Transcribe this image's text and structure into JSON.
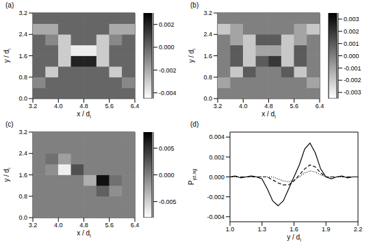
{
  "chart_data": [
    {
      "type": "heatmap",
      "title": "(a)",
      "xlabel": "x / di",
      "ylabel": "y / di",
      "xlim": [
        3.2,
        6.4
      ],
      "xticks": [
        3.2,
        {
          "value": 4,
          "label": "4.0"
        },
        4.8,
        5.6,
        6.4
      ],
      "ylim": [
        0,
        3.2
      ],
      "yticks": [
        {
          "value": 0,
          "label": "0.0"
        },
        0.8,
        1.6,
        2.4,
        3.2
      ],
      "cell_x": [
        3.4,
        3.8,
        4.2,
        4.6,
        5.0,
        5.4,
        5.8,
        6.2
      ],
      "cell_y": [
        0.2,
        0.6,
        1.0,
        1.4,
        1.8,
        2.2,
        2.6,
        3.0
      ],
      "cells": [
        [
          0,
          0,
          0,
          0,
          0,
          0,
          0,
          0
        ],
        [
          -0.001,
          0,
          0,
          0,
          0,
          0,
          0,
          -0.001
        ],
        [
          0,
          -0.003,
          0,
          0,
          0,
          0,
          -0.003,
          0
        ],
        [
          0,
          0,
          -0.003,
          0.002,
          0.002,
          -0.003,
          0,
          0
        ],
        [
          0,
          0,
          -0.003,
          -0.004,
          -0.004,
          -0.003,
          0,
          0
        ],
        [
          0,
          -0.001,
          -0.003,
          0,
          0,
          -0.003,
          -0.001,
          0
        ],
        [
          -0.002,
          -0.002,
          0,
          0,
          0,
          0,
          -0.002,
          -0.002
        ],
        [
          0,
          0,
          0,
          0,
          0,
          0,
          0,
          0
        ]
      ],
      "colorbar_range": [
        -0.0045,
        0.003
      ],
      "colorbar_ticks": [
        0.002,
        {
          "value": 0,
          "label": "0.000"
        },
        -0.002,
        -0.004
      ]
    },
    {
      "type": "heatmap",
      "title": "(b)",
      "xlabel": "x / di",
      "ylabel": "y / di",
      "xlim": [
        3.2,
        6.4
      ],
      "xticks": [
        3.2,
        {
          "value": 4,
          "label": "4.0"
        },
        4.8,
        5.6,
        6.4
      ],
      "ylim": [
        0,
        3.2
      ],
      "yticks": [
        {
          "value": 0,
          "label": "0.0"
        },
        0.8,
        1.6,
        2.4,
        3.2
      ],
      "cell_x": [
        3.4,
        3.8,
        4.2,
        4.6,
        5.0,
        5.4,
        5.8,
        6.2
      ],
      "cell_y": [
        0.2,
        0.6,
        1.0,
        1.4,
        1.8,
        2.2,
        2.6,
        3.0
      ],
      "cells": [
        [
          0,
          0,
          0,
          0,
          0,
          0,
          0,
          0
        ],
        [
          -0.001,
          0,
          0,
          0,
          0,
          0,
          0,
          -0.001
        ],
        [
          0,
          -0.002,
          0.001,
          0,
          0,
          0.001,
          -0.002,
          0
        ],
        [
          0,
          0.001,
          -0.002,
          0.001,
          0.002,
          -0.002,
          0.001,
          0
        ],
        [
          0,
          0.001,
          -0.002,
          -0.001,
          -0.001,
          -0.002,
          0.001,
          0
        ],
        [
          0,
          -0.001,
          -0.002,
          0.001,
          0.001,
          -0.002,
          -0.001,
          0
        ],
        [
          -0.002,
          -0.001,
          0,
          0,
          0,
          0,
          -0.001,
          -0.002
        ],
        [
          0,
          0,
          0,
          0,
          0,
          0,
          0,
          0
        ]
      ],
      "colorbar_range": [
        -0.0035,
        0.0035
      ],
      "colorbar_ticks": [
        0.003,
        0.002,
        0.001,
        {
          "value": 0,
          "label": "0.000"
        },
        -0.001,
        -0.002,
        -0.003
      ]
    },
    {
      "type": "heatmap",
      "title": "(c)",
      "xlabel": "x / di",
      "ylabel": "y / di",
      "xlim": [
        3.2,
        6.4
      ],
      "xticks": [
        3.2,
        {
          "value": 4,
          "label": "4.0"
        },
        4.8,
        5.6,
        6.4
      ],
      "ylim": [
        0,
        3.2
      ],
      "yticks": [
        {
          "value": 0,
          "label": "0.0"
        },
        0.8,
        1.6,
        2.4,
        3.2
      ],
      "cell_x": [
        3.4,
        3.8,
        4.2,
        4.6,
        5.0,
        5.4,
        5.8,
        6.2
      ],
      "cell_y": [
        0.2,
        0.6,
        1.0,
        1.4,
        1.8,
        2.2,
        2.6,
        3.0
      ],
      "cells": [
        [
          0,
          0,
          0,
          0,
          0,
          0,
          0,
          0
        ],
        [
          0,
          0,
          0,
          0,
          0,
          0,
          0,
          0
        ],
        [
          0,
          0,
          0,
          0,
          0,
          0.002,
          -0.001,
          0
        ],
        [
          0,
          0,
          0,
          0,
          -0.003,
          0.007,
          0.001,
          0
        ],
        [
          0,
          -0.001,
          -0.007,
          0.003,
          0,
          0,
          0,
          0
        ],
        [
          0,
          0.001,
          -0.002,
          0,
          0,
          0,
          0,
          0
        ],
        [
          0,
          0,
          0,
          0,
          0,
          0,
          0,
          0
        ],
        [
          0,
          0,
          0,
          0,
          0,
          0,
          0,
          0
        ]
      ],
      "colorbar_range": [
        -0.008,
        0.008
      ],
      "colorbar_ticks": [
        0.005,
        {
          "value": 0,
          "label": "0.000"
        },
        -0.005
      ]
    },
    {
      "type": "line",
      "title": "(d)",
      "xlabel": "y / di",
      "ylabel": "Pyz,ng",
      "xlim": [
        1.0,
        2.2
      ],
      "xticks": [
        {
          "value": 1,
          "label": "1.0"
        },
        1.3,
        1.6,
        1.9,
        2.2
      ],
      "ylim": [
        -0.0045,
        0.0045
      ],
      "yticks": [
        -0.004,
        -0.002,
        {
          "value": 0,
          "label": "0.000"
        },
        0.002,
        0.004
      ],
      "x": [
        1.0,
        1.05,
        1.1,
        1.15,
        1.2,
        1.25,
        1.3,
        1.35,
        1.4,
        1.45,
        1.5,
        1.55,
        1.6,
        1.65,
        1.7,
        1.75,
        1.8,
        1.85,
        1.9,
        1.95,
        2.0,
        2.05,
        2.1,
        2.15,
        2.2
      ],
      "series": [
        {
          "color": "#000000",
          "line_style": "solid",
          "values": [
            0,
            0.0001,
            -0.0001,
            0,
            0.0001,
            0,
            -0.0002,
            -0.0012,
            -0.0024,
            -0.0029,
            -0.0024,
            -0.0012,
            0,
            0.0012,
            0.0028,
            0.0034,
            0.0024,
            0.0008,
            0,
            -0.0002,
            0,
            0.0001,
            -0.0001,
            0,
            0
          ]
        },
        {
          "color": "#000000",
          "line_style": "dashed",
          "values": [
            0,
            0,
            0,
            0,
            0,
            0,
            0,
            0,
            -0.0003,
            -0.0006,
            -0.0008,
            -0.0008,
            -0.0004,
            0.0002,
            0.0008,
            0.0012,
            0.001,
            0.0004,
            0,
            0,
            0,
            0,
            0,
            0,
            0
          ]
        },
        {
          "color": "#000000",
          "line_style": "dotted",
          "values": [
            0,
            0,
            0,
            0,
            0,
            0,
            0,
            0,
            0,
            -0.0002,
            -0.0004,
            -0.0005,
            -0.0003,
            0,
            0.0004,
            0.0006,
            0.0005,
            0.0002,
            0,
            0,
            0,
            0,
            0,
            0,
            0
          ]
        }
      ]
    }
  ]
}
